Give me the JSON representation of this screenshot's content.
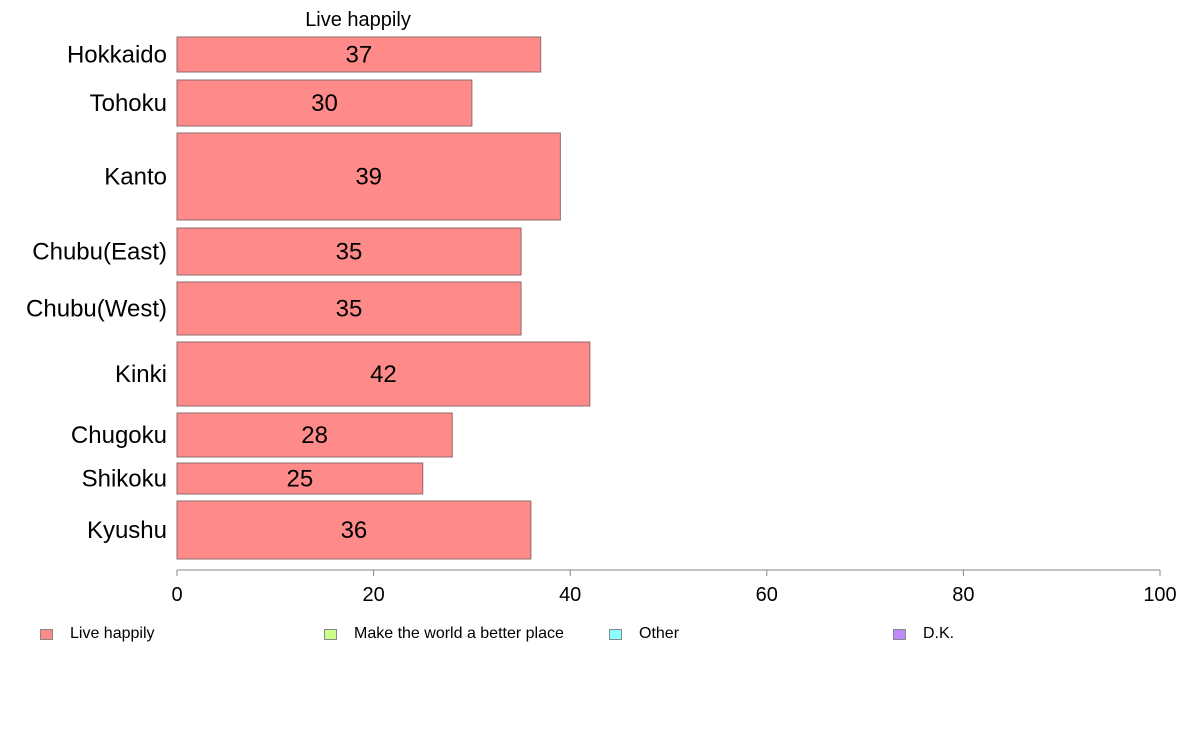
{
  "chart_data": {
    "type": "bar",
    "orientation": "horizontal",
    "column_title": "Live happily",
    "categories": [
      "Hokkaido",
      "Tohoku",
      "Kanto",
      "Chubu(East)",
      "Chubu(West)",
      "Kinki",
      "Chugoku",
      "Shikoku",
      "Kyushu"
    ],
    "series": [
      {
        "name": "Live happily",
        "values": [
          37,
          30,
          39,
          35,
          35,
          42,
          28,
          25,
          36
        ],
        "color": "#ff8a8a"
      }
    ],
    "data_labels": [
      "37",
      "30",
      "39",
      "35",
      "35",
      "42",
      "28",
      "25",
      "36"
    ],
    "xlim": [
      0,
      100
    ],
    "xticks": [
      0,
      20,
      40,
      60,
      80,
      100
    ],
    "xtick_labels": [
      "0",
      "20",
      "40",
      "60",
      "80",
      "100"
    ],
    "grid": false,
    "legend_position": "bottom"
  },
  "legend": {
    "items": [
      {
        "label": "Live happily",
        "color": "#ff8a8a"
      },
      {
        "label": "Make the world a better place",
        "color": "#ccff8a"
      },
      {
        "label": "Other",
        "color": "#8affff"
      },
      {
        "label": "D.K.",
        "color": "#c08aff"
      }
    ]
  }
}
